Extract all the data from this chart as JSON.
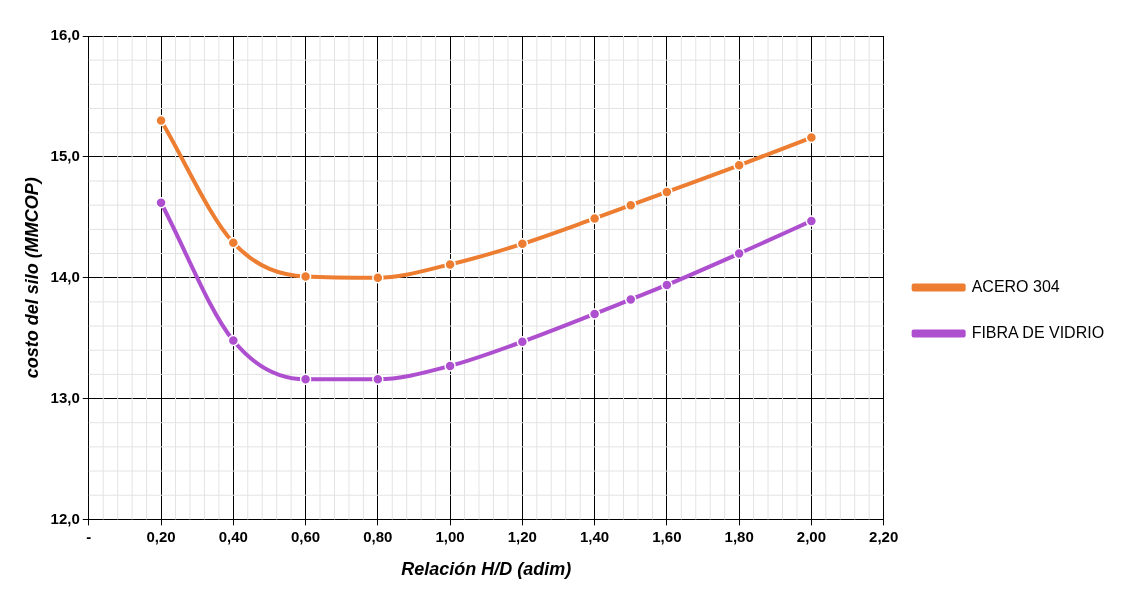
{
  "chart_data": {
    "type": "line",
    "xlabel": "Relación H/D (adim)",
    "ylabel": "costo del silo (MMCOP)",
    "x": [
      0.2,
      0.4,
      0.6,
      0.8,
      1.0,
      1.2,
      1.4,
      1.5,
      1.6,
      1.8,
      2.0
    ],
    "series": [
      {
        "name": "ACERO 304",
        "color": "#ed7d31",
        "values": [
          15.3,
          14.29,
          14.01,
          14.0,
          14.11,
          14.28,
          14.49,
          14.6,
          14.71,
          14.93,
          15.16
        ]
      },
      {
        "name": "FIBRA DE VIDRIO",
        "color": "#ad4fcf",
        "values": [
          14.62,
          13.48,
          13.16,
          13.16,
          13.27,
          13.47,
          13.7,
          13.82,
          13.94,
          14.2,
          14.47
        ]
      }
    ],
    "xlim": [
      0,
      2.2
    ],
    "xticks": [
      {
        "value": 0,
        "label": "-"
      },
      {
        "value": 0.2,
        "label": "0,20"
      },
      {
        "value": 0.4,
        "label": "0,40"
      },
      {
        "value": 0.6,
        "label": "0,60"
      },
      {
        "value": 0.8,
        "label": "0,80"
      },
      {
        "value": 1.0,
        "label": "1,00"
      },
      {
        "value": 1.2,
        "label": "1,20"
      },
      {
        "value": 1.4,
        "label": "1,40"
      },
      {
        "value": 1.6,
        "label": "1,60"
      },
      {
        "value": 1.8,
        "label": "1,80"
      },
      {
        "value": 2.0,
        "label": "2,00"
      },
      {
        "value": 2.2,
        "label": "2,20"
      }
    ],
    "ylim": [
      12,
      16
    ],
    "yticks": [
      {
        "value": 12,
        "label": "12,0"
      },
      {
        "value": 13,
        "label": "13,0"
      },
      {
        "value": 14,
        "label": "14,0"
      },
      {
        "value": 15,
        "label": "15,0"
      },
      {
        "value": 16,
        "label": "16,0"
      }
    ],
    "grid": true,
    "legend": "right",
    "marker": "circle",
    "line_style": "solid"
  }
}
